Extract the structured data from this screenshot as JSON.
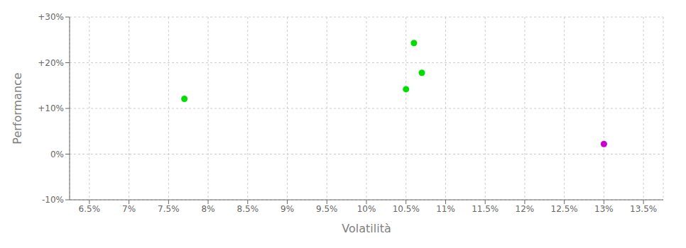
{
  "chart_data": {
    "type": "scatter",
    "xlabel": "Volatilità",
    "ylabel": "Performance",
    "x": [
      0.077,
      0.106,
      0.107,
      0.105,
      0.13
    ],
    "values": [
      0.121,
      0.243,
      0.178,
      0.142,
      0.022
    ],
    "colors": [
      "#00dd00",
      "#00dd00",
      "#00dd00",
      "#00dd00",
      "#cc00cc"
    ],
    "xlim": [
      0.0625,
      0.1375
    ],
    "ylim": [
      -0.1,
      0.3
    ],
    "xticks": [
      {
        "value": 0.065,
        "label": "6.5%"
      },
      {
        "value": 0.07,
        "label": "7%"
      },
      {
        "value": 0.075,
        "label": "7.5%"
      },
      {
        "value": 0.08,
        "label": "8%"
      },
      {
        "value": 0.085,
        "label": "8.5%"
      },
      {
        "value": 0.09,
        "label": "9%"
      },
      {
        "value": 0.095,
        "label": "9.5%"
      },
      {
        "value": 0.1,
        "label": "10%"
      },
      {
        "value": 0.105,
        "label": "10.5%"
      },
      {
        "value": 0.11,
        "label": "11%"
      },
      {
        "value": 0.115,
        "label": "11.5%"
      },
      {
        "value": 0.12,
        "label": "12%"
      },
      {
        "value": 0.125,
        "label": "12.5%"
      },
      {
        "value": 0.13,
        "label": "13%"
      },
      {
        "value": 0.135,
        "label": "13.5%"
      }
    ],
    "yticks": [
      {
        "value": -0.1,
        "label": "-10%"
      },
      {
        "value": 0.0,
        "label": "0%"
      },
      {
        "value": 0.1,
        "label": "+10%"
      },
      {
        "value": 0.2,
        "label": "+20%"
      },
      {
        "value": 0.3,
        "label": "+30%"
      }
    ],
    "grid": true
  }
}
